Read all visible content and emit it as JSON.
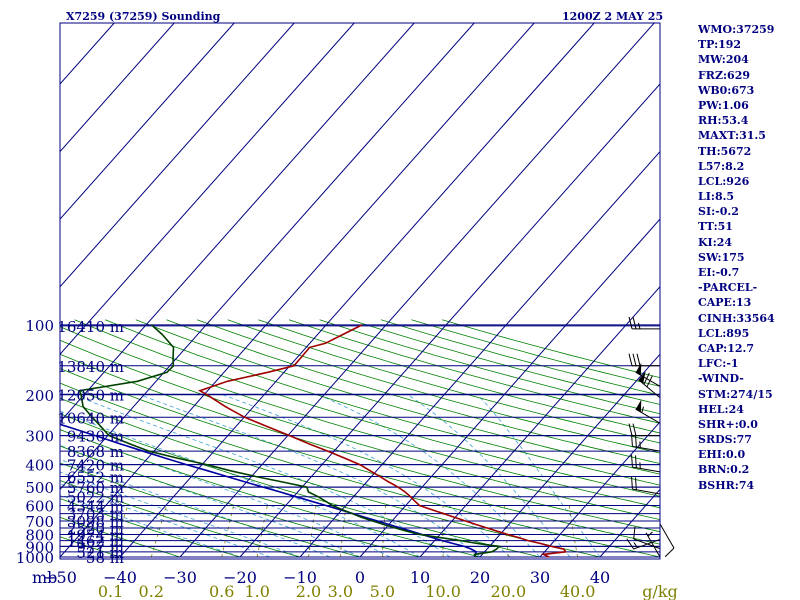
{
  "title_left": "X7259 (37259) Sounding",
  "title_right": "1200Z  2 MAY 25",
  "stats": [
    "WMO:37259",
    "TP:192",
    "MW:204",
    "FRZ:629",
    "WB0:673",
    "PW:1.06",
    "RH:53.4",
    "MAXT:31.5",
    "TH:5672",
    "L57:8.2",
    "LCL:926",
    "LI:8.5",
    "SI:-0.2",
    "TT:51",
    "KI:24",
    "SW:175",
    "EI:-0.7",
    "-PARCEL-",
    "CAPE:13",
    "CINH:33564",
    "LCL:895",
    "CAP:12.7",
    "LFC:-1",
    "-WIND-",
    "STM:274/15",
    "HEL:24",
    "SHR+:0.0",
    "SRDS:77",
    "EHI:0.0",
    "BRN:0.2",
    "BSHR:74"
  ],
  "colors": {
    "frame": "#000080",
    "isotherm": "#000080",
    "dry_adiabat": "#008000",
    "moist_adiabat": "#40a0d0",
    "mixing_ratio": "#808000",
    "temperature": "#a00000",
    "dewpoint": "#004000",
    "parcel": "#0000a0",
    "wind": "#000000"
  },
  "chart_data": {
    "type": "line",
    "title": "X7259 (37259) Sounding",
    "subtitle": "1200Z  2 MAY 25",
    "y_axis_label": "mb",
    "x_axis_unit": "g/kg",
    "pressure_ticks": [
      {
        "p": 100,
        "label": "100"
      },
      {
        "p": 200,
        "label": "200"
      },
      {
        "p": 300,
        "label": "300"
      },
      {
        "p": 400,
        "label": "400"
      },
      {
        "p": 500,
        "label": "500"
      },
      {
        "p": 600,
        "label": "600"
      },
      {
        "p": 700,
        "label": "700"
      },
      {
        "p": 800,
        "label": "800"
      },
      {
        "p": 900,
        "label": "900"
      },
      {
        "p": 1000,
        "label": "1000"
      }
    ],
    "height_levels": [
      {
        "p": 101,
        "label": "16410 m"
      },
      {
        "p": 150,
        "label": "13840 m"
      },
      {
        "p": 199,
        "label": "12050 m"
      },
      {
        "p": 250,
        "label": "10640 m"
      },
      {
        "p": 300,
        "label": "9430 m"
      },
      {
        "p": 350,
        "label": "8368 m"
      },
      {
        "p": 400,
        "label": "7420 m"
      },
      {
        "p": 450,
        "label": "6552 m"
      },
      {
        "p": 500,
        "label": "5760 m"
      },
      {
        "p": 550,
        "label": "5022 m"
      },
      {
        "p": 600,
        "label": "4344 m"
      },
      {
        "p": 650,
        "label": "3703 m"
      },
      {
        "p": 700,
        "label": "3098 m"
      },
      {
        "p": 750,
        "label": "2520 m"
      },
      {
        "p": 800,
        "label": "1974 m"
      },
      {
        "p": 850,
        "label": "1462 m"
      },
      {
        "p": 900,
        "label": "977 m"
      },
      {
        "p": 950,
        "label": "521 m"
      },
      {
        "p": 1000,
        "label": "58 m"
      }
    ],
    "temperature_ticks": [
      -50,
      -40,
      -30,
      -20,
      -10,
      0,
      10,
      20,
      30,
      40
    ],
    "mixing_ratio_labels": [
      {
        "w": 0.1,
        "label": "0.1"
      },
      {
        "w": 0.2,
        "label": "0.2"
      },
      {
        "w": 0.6,
        "label": "0.6"
      },
      {
        "w": 1.0,
        "label": "1.0"
      },
      {
        "w": 2.0,
        "label": "2.0"
      },
      {
        "w": 3.0,
        "label": "3.0"
      },
      {
        "w": 5.0,
        "label": "5.0"
      },
      {
        "w": 10.0,
        "label": "10.0"
      },
      {
        "w": 20.0,
        "label": "20.0"
      },
      {
        "w": 40.0,
        "label": "40.0"
      }
    ],
    "temperature_profile": [
      [
        1000,
        31.5
      ],
      [
        975,
        30.2
      ],
      [
        950,
        33.5
      ],
      [
        925,
        32.8
      ],
      [
        900,
        30.3
      ],
      [
        875,
        28.1
      ],
      [
        850,
        25.6
      ],
      [
        825,
        23.6
      ],
      [
        800,
        21.3
      ],
      [
        775,
        19.1
      ],
      [
        750,
        16.9
      ],
      [
        725,
        14.6
      ],
      [
        700,
        12.3
      ],
      [
        675,
        9.9
      ],
      [
        650,
        7.5
      ],
      [
        625,
        4.9
      ],
      [
        600,
        2.3
      ],
      [
        575,
        0.9
      ],
      [
        550,
        -0.5
      ],
      [
        525,
        -2.1
      ],
      [
        500,
        -4.0
      ],
      [
        475,
        -6.3
      ],
      [
        450,
        -8.6
      ],
      [
        425,
        -11.1
      ],
      [
        400,
        -13.7
      ],
      [
        375,
        -17.2
      ],
      [
        350,
        -21.0
      ],
      [
        325,
        -25.3
      ],
      [
        300,
        -29.7
      ],
      [
        275,
        -34.6
      ],
      [
        250,
        -39.9
      ],
      [
        225,
        -44.7
      ],
      [
        200,
        -49.5
      ],
      [
        192,
        -51.3
      ],
      [
        175,
        -48.1
      ],
      [
        160,
        -42.7
      ],
      [
        150,
        -39.3
      ],
      [
        125,
        -39.4
      ],
      [
        120,
        -37.4
      ],
      [
        110,
        -35.8
      ],
      [
        100,
        -34.0
      ]
    ],
    "dewpoint_profile": [
      [
        1000,
        19.3
      ],
      [
        975,
        18.7
      ],
      [
        950,
        21.2
      ],
      [
        925,
        21.6
      ],
      [
        900,
        21.6
      ],
      [
        875,
        17.6
      ],
      [
        850,
        14.3
      ],
      [
        825,
        10.5
      ],
      [
        800,
        6.6
      ],
      [
        775,
        4.1
      ],
      [
        750,
        1.6
      ],
      [
        725,
        -0.8
      ],
      [
        700,
        -3.2
      ],
      [
        675,
        -5.6
      ],
      [
        650,
        -7.7
      ],
      [
        625,
        -10.0
      ],
      [
        600,
        -12.2
      ],
      [
        575,
        -14.0
      ],
      [
        550,
        -15.9
      ],
      [
        525,
        -18.2
      ],
      [
        500,
        -19.2
      ],
      [
        475,
        -24.0
      ],
      [
        450,
        -29.3
      ],
      [
        425,
        -34.4
      ],
      [
        400,
        -39.2
      ],
      [
        375,
        -45.1
      ],
      [
        350,
        -50.8
      ],
      [
        325,
        -55.2
      ],
      [
        300,
        -59.8
      ],
      [
        275,
        -62.4
      ],
      [
        250,
        -65.3
      ],
      [
        225,
        -68.4
      ],
      [
        200,
        -70.5
      ],
      [
        192,
        -71.4
      ],
      [
        175,
        -63.1
      ],
      [
        160,
        -59.5
      ],
      [
        150,
        -59.4
      ],
      [
        140,
        -60.5
      ],
      [
        125,
        -62.1
      ],
      [
        110,
        -65.9
      ],
      [
        100,
        -69.1
      ]
    ],
    "parcel_profile": [
      [
        1000,
        19.1
      ],
      [
        950,
        18.6
      ],
      [
        925,
        17.4
      ],
      [
        900,
        15.8
      ],
      [
        875,
        13.5
      ],
      [
        850,
        11.3
      ],
      [
        825,
        9.2
      ],
      [
        800,
        7.0
      ],
      [
        775,
        4.8
      ],
      [
        750,
        2.5
      ],
      [
        725,
        0.1
      ],
      [
        700,
        -2.4
      ],
      [
        675,
        -5.0
      ],
      [
        650,
        -7.6
      ],
      [
        625,
        -10.4
      ],
      [
        600,
        -13.3
      ],
      [
        575,
        -16.4
      ],
      [
        550,
        -19.6
      ],
      [
        525,
        -22.9
      ],
      [
        500,
        -26.5
      ],
      [
        475,
        -30.2
      ],
      [
        450,
        -34.1
      ],
      [
        425,
        -38.2
      ],
      [
        400,
        -42.6
      ],
      [
        375,
        -47.1
      ],
      [
        350,
        -51.8
      ],
      [
        325,
        -56.8
      ],
      [
        300,
        -62.1
      ],
      [
        275,
        -67.9
      ],
      [
        250,
        -74.5
      ],
      [
        225,
        -81.3
      ],
      [
        200,
        -88.3
      ],
      [
        175,
        -95.7
      ],
      [
        150,
        -103.4
      ],
      [
        125,
        -111.3
      ],
      [
        110,
        -116.0
      ],
      [
        105,
        -117.3
      ]
    ],
    "wind_barbs": [
      {
        "p": 104,
        "dir": 270,
        "speed": 25
      },
      {
        "p": 150,
        "dir": 270,
        "speed": 30
      },
      {
        "p": 184,
        "dir": 300,
        "speed": 50
      },
      {
        "p": 206,
        "dir": 310,
        "speed": 70
      },
      {
        "p": 265,
        "dir": 300,
        "speed": 55
      },
      {
        "p": 300,
        "dir": 270,
        "speed": 20
      },
      {
        "p": 350,
        "dir": 280,
        "speed": 25
      },
      {
        "p": 430,
        "dir": 280,
        "speed": 25
      },
      {
        "p": 535,
        "dir": 280,
        "speed": 20
      },
      {
        "p": 720,
        "dir": 150,
        "speed": 10
      },
      {
        "p": 840,
        "dir": 250,
        "speed": 15
      },
      {
        "p": 920,
        "dir": 290,
        "speed": 10
      },
      {
        "p": 1000,
        "dir": 330,
        "speed": 5
      }
    ]
  }
}
